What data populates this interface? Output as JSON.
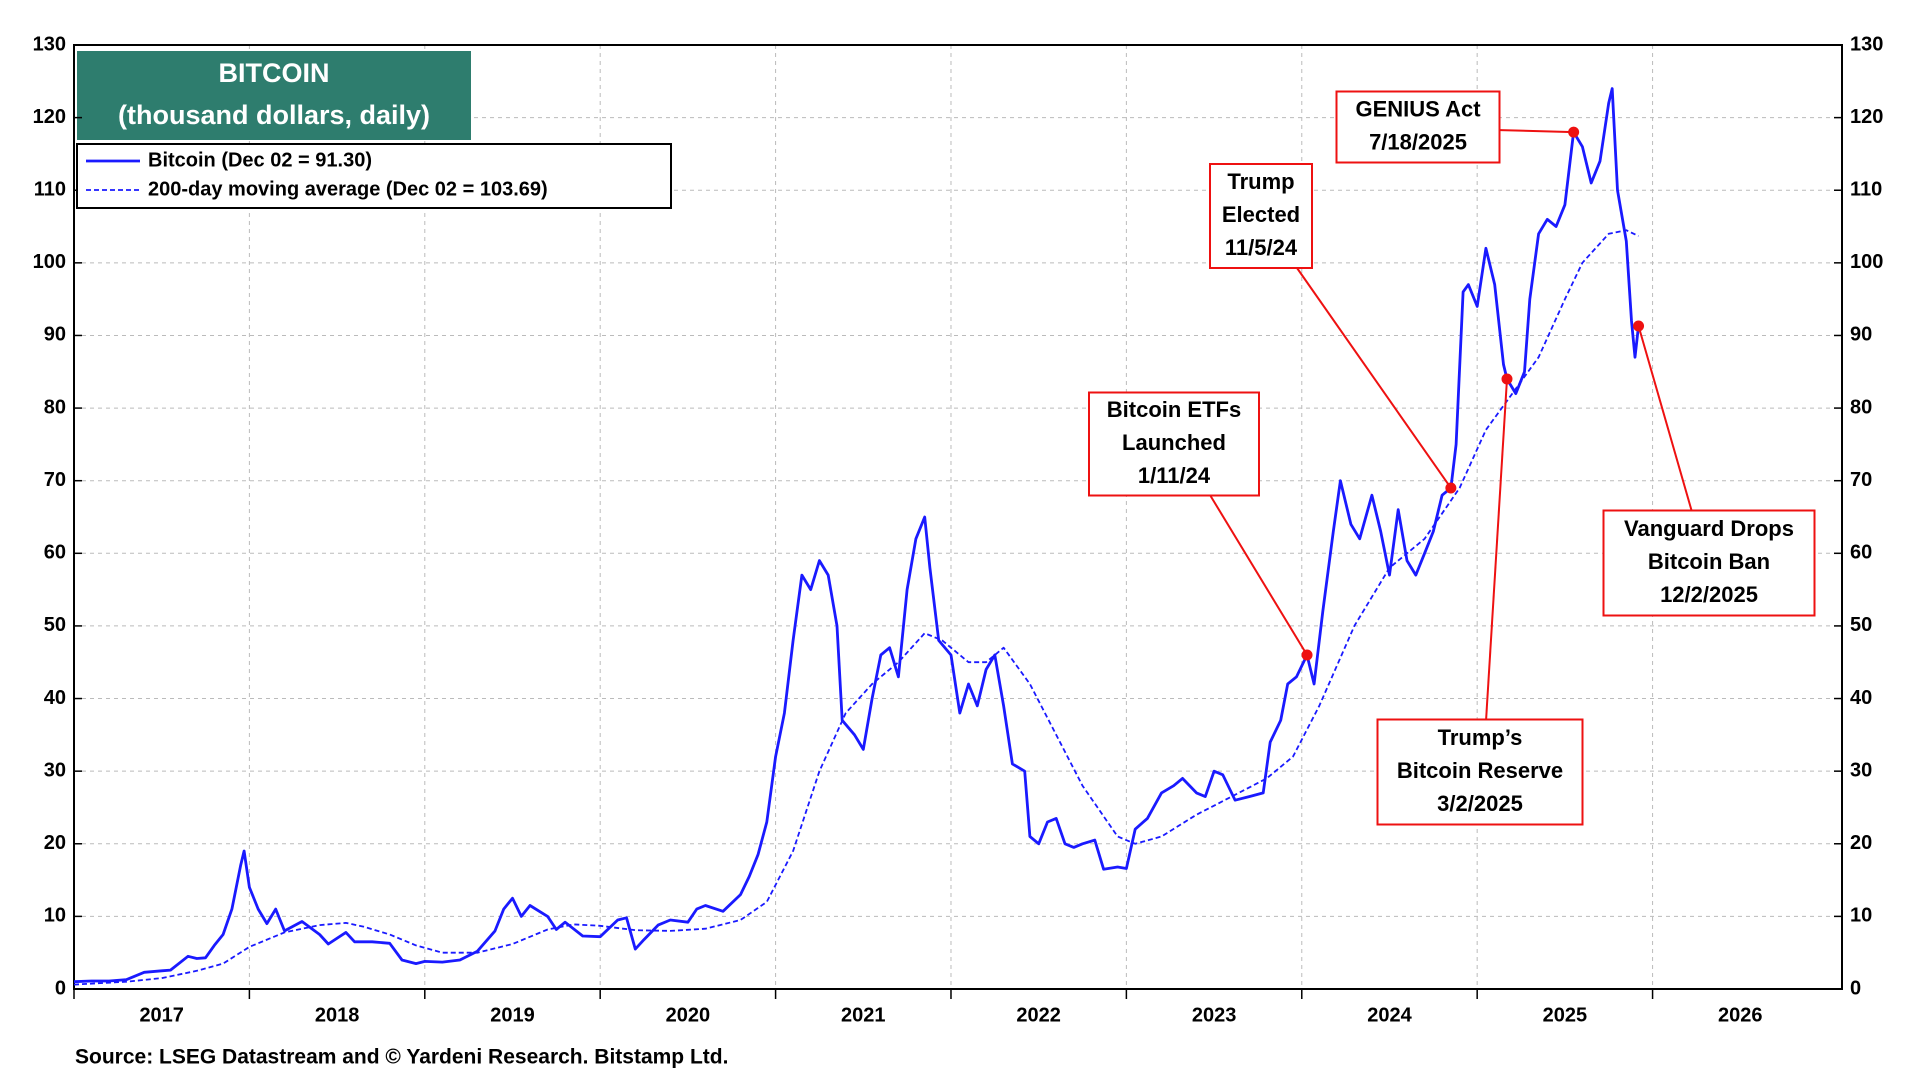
{
  "chart_data": {
    "type": "line",
    "title": "BITCOIN",
    "subtitle": "(thousand dollars, daily)",
    "source": "Source: LSEG Datastream and © Yardeni Research. Bitstamp Ltd.",
    "xlim": [
      2017,
      2027.08
    ],
    "xticks": [
      2017,
      2018,
      2019,
      2020,
      2021,
      2022,
      2023,
      2024,
      2025,
      2026
    ],
    "ylim": [
      0,
      130
    ],
    "yticks": [
      0,
      10,
      20,
      30,
      40,
      50,
      60,
      70,
      80,
      90,
      100,
      110,
      120,
      130
    ],
    "y2lim": [
      0,
      130
    ],
    "y2ticks": [
      0,
      10,
      20,
      30,
      40,
      50,
      60,
      70,
      80,
      90,
      100,
      110,
      120,
      130
    ],
    "grid": true,
    "legend": "top-left",
    "series": [
      {
        "name": "Bitcoin (Dec 02 = 91.30)",
        "color": "#1a1aff",
        "style": "solid",
        "x": [
          2017.0,
          2017.1,
          2017.2,
          2017.3,
          2017.4,
          2017.5,
          2017.55,
          2017.65,
          2017.7,
          2017.75,
          2017.8,
          2017.85,
          2017.9,
          2017.95,
          2017.97,
          2018.0,
          2018.05,
          2018.1,
          2018.15,
          2018.2,
          2018.3,
          2018.4,
          2018.45,
          2018.55,
          2018.6,
          2018.7,
          2018.8,
          2018.87,
          2018.95,
          2019.0,
          2019.1,
          2019.2,
          2019.3,
          2019.4,
          2019.45,
          2019.5,
          2019.55,
          2019.6,
          2019.7,
          2019.75,
          2019.8,
          2019.9,
          2020.0,
          2020.1,
          2020.15,
          2020.2,
          2020.25,
          2020.33,
          2020.4,
          2020.5,
          2020.55,
          2020.6,
          2020.7,
          2020.8,
          2020.85,
          2020.9,
          2020.95,
          2021.0,
          2021.05,
          2021.1,
          2021.15,
          2021.2,
          2021.25,
          2021.3,
          2021.35,
          2021.38,
          2021.45,
          2021.5,
          2021.55,
          2021.6,
          2021.65,
          2021.7,
          2021.75,
          2021.8,
          2021.85,
          2021.88,
          2021.93,
          2022.0,
          2022.05,
          2022.1,
          2022.15,
          2022.2,
          2022.25,
          2022.3,
          2022.35,
          2022.42,
          2022.45,
          2022.5,
          2022.55,
          2022.6,
          2022.65,
          2022.7,
          2022.75,
          2022.82,
          2022.87,
          2022.95,
          2023.0,
          2023.05,
          2023.12,
          2023.2,
          2023.27,
          2023.32,
          2023.4,
          2023.45,
          2023.5,
          2023.55,
          2023.62,
          2023.7,
          2023.78,
          2023.82,
          2023.88,
          2023.92,
          2023.97,
          2024.03,
          2024.07,
          2024.12,
          2024.18,
          2024.22,
          2024.28,
          2024.33,
          2024.4,
          2024.45,
          2024.5,
          2024.55,
          2024.6,
          2024.65,
          2024.7,
          2024.75,
          2024.8,
          2024.85,
          2024.88,
          2024.92,
          2024.95,
          2025.0,
          2025.05,
          2025.1,
          2025.15,
          2025.17,
          2025.22,
          2025.27,
          2025.3,
          2025.35,
          2025.4,
          2025.45,
          2025.5,
          2025.55,
          2025.6,
          2025.65,
          2025.7,
          2025.75,
          2025.77,
          2025.8,
          2025.85,
          2025.88,
          2025.9,
          2025.92
        ],
        "values": [
          1.0,
          1.1,
          1.1,
          1.3,
          2.3,
          2.5,
          2.6,
          4.5,
          4.2,
          4.3,
          6.0,
          7.5,
          11,
          17,
          19,
          14,
          11,
          9,
          11,
          8,
          9.3,
          7.5,
          6.2,
          7.8,
          6.5,
          6.5,
          6.3,
          4,
          3.5,
          3.8,
          3.7,
          4.0,
          5.2,
          8,
          11,
          12.5,
          10,
          11.5,
          10,
          8.2,
          9.2,
          7.3,
          7.2,
          9.5,
          9.8,
          5.5,
          6.8,
          8.8,
          9.5,
          9.2,
          11,
          11.5,
          10.7,
          13,
          15.5,
          18.5,
          23,
          32,
          38,
          48,
          57,
          55,
          59,
          57,
          50,
          37,
          35,
          33,
          40,
          46,
          47,
          43,
          55,
          62,
          65,
          58,
          48,
          46,
          38,
          42,
          39,
          44,
          46,
          39,
          31,
          30,
          21,
          20,
          23,
          23.5,
          20,
          19.5,
          20,
          20.5,
          16.5,
          16.8,
          16.6,
          22,
          23.5,
          27,
          28,
          29,
          27,
          26.5,
          30,
          29.5,
          26,
          26.5,
          27,
          34,
          37,
          42,
          43,
          46,
          42,
          52,
          63,
          70,
          64,
          62,
          68,
          63,
          57,
          66,
          59,
          57,
          60,
          63,
          68,
          69,
          75,
          96,
          97,
          94,
          102,
          97,
          86,
          84,
          82,
          85,
          95,
          104,
          106,
          105,
          108,
          118,
          116,
          111,
          114,
          122,
          124,
          110,
          103,
          92,
          87,
          91.3
        ]
      },
      {
        "name": "200-day moving average (Dec 02 = 103.69)",
        "color": "#1a1aff",
        "style": "dashed",
        "x": [
          2017.0,
          2017.3,
          2017.5,
          2017.7,
          2017.85,
          2018.0,
          2018.2,
          2018.4,
          2018.55,
          2018.65,
          2018.8,
          2018.95,
          2019.1,
          2019.3,
          2019.5,
          2019.7,
          2019.85,
          2020.0,
          2020.2,
          2020.4,
          2020.6,
          2020.8,
          2020.95,
          2021.1,
          2021.25,
          2021.4,
          2021.55,
          2021.7,
          2021.85,
          2021.95,
          2022.1,
          2022.2,
          2022.3,
          2022.45,
          2022.6,
          2022.75,
          2022.95,
          2023.05,
          2023.2,
          2023.4,
          2023.6,
          2023.8,
          2023.95,
          2024.1,
          2024.3,
          2024.5,
          2024.7,
          2024.9,
          2025.05,
          2025.2,
          2025.35,
          2025.5,
          2025.6,
          2025.75,
          2025.85,
          2025.92
        ],
        "values": [
          0.6,
          1.0,
          1.5,
          2.5,
          3.5,
          5.8,
          7.8,
          8.8,
          9.1,
          8.6,
          7.5,
          6,
          5,
          5.0,
          6.2,
          8.2,
          8.9,
          8.7,
          8.1,
          8,
          8.3,
          9.5,
          12,
          19,
          30,
          38,
          42,
          45,
          49,
          48,
          45,
          45,
          47,
          42,
          35,
          28,
          21,
          20,
          21,
          24,
          26.5,
          29,
          32,
          39,
          50,
          58,
          62,
          69,
          77,
          82,
          87,
          95,
          100,
          104,
          104.5,
          103.69
        ]
      }
    ],
    "annotations": [
      {
        "text": [
          "GENIUS Act",
          "7/18/2025"
        ],
        "x": 2025.55,
        "y": 118
      },
      {
        "text": [
          "Trump",
          "Elected",
          "11/5/24"
        ],
        "x": 2024.85,
        "y": 69
      },
      {
        "text": [
          "Bitcoin ETFs",
          "Launched",
          "1/11/24"
        ],
        "x": 2024.03,
        "y": 46
      },
      {
        "text": [
          "Trump’s",
          "Bitcoin Reserve",
          "3/2/2025"
        ],
        "x": 2025.17,
        "y": 84
      },
      {
        "text": [
          "Vanguard Drops",
          "Bitcoin Ban",
          "12/2/2025"
        ],
        "x": 2025.92,
        "y": 91.3
      }
    ]
  }
}
